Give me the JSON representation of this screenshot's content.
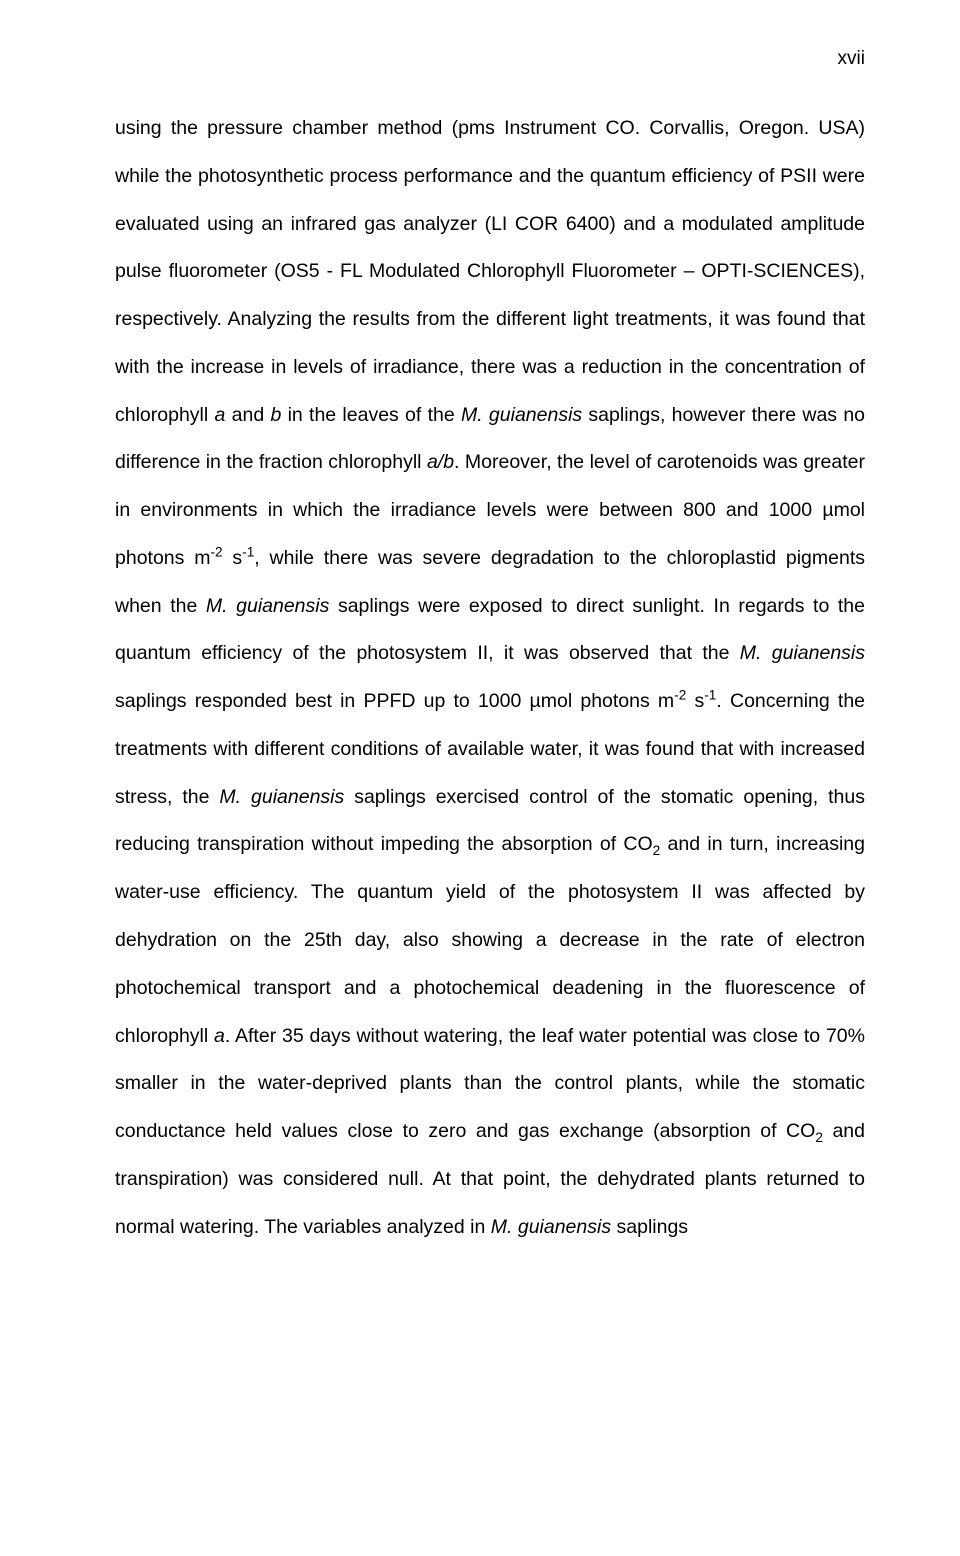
{
  "page": {
    "number": "xvii",
    "background_color": "#ffffff",
    "text_color": "#000000",
    "font_family": "Arial",
    "body_fontsize": 19.5,
    "line_height": 2.45,
    "text_align": "justify"
  },
  "content": {
    "p1_a": "using the pressure chamber method (pms Instrument CO. Corvallis, Oregon. USA) while the photosynthetic process performance and the quantum efficiency of PSII were evaluated using an infrared gas analyzer (LI COR 6400) and a modulated amplitude pulse fluorometer (OS5 - FL Modulated Chlorophyll Fluorometer – OPTI-SCIENCES), respectively. Analyzing the results from the different light treatments, it was found that with the increase in levels of irradiance, there was a reduction in the concentration of chlorophyll ",
    "p1_b": "a",
    "p1_c": " and ",
    "p1_d": "b",
    "p1_e": " in the leaves of the ",
    "p1_f": "M. guianensis",
    "p1_g": " saplings, however there was no difference in the fraction chlorophyll ",
    "p1_h": "a/b",
    "p1_i": ". Moreover, the level of carotenoids was greater in environments in which the irradiance levels were between 800 and 1000 µmol photons m",
    "p1_j": "-2",
    "p1_k": " s",
    "p1_l": "-1",
    "p1_m": ", while there was severe degradation to the chloroplastid pigments when the ",
    "p1_n": "M. guianensis",
    "p1_o": " saplings were exposed to direct sunlight. In regards to the quantum efficiency of the photosystem II, it was observed that the ",
    "p1_p": "M. guianensis",
    "p1_q": " saplings responded best in PPFD up to 1000 µmol photons m",
    "p1_r": "-2",
    "p1_s": " s",
    "p1_t": "-1",
    "p1_u": ". Concerning the treatments with different conditions of available water, it was found that with increased stress, the ",
    "p1_v": "M. guianensis",
    "p1_w": " saplings exercised control of the stomatic opening, thus reducing transpiration without impeding the absorption of CO",
    "p1_x": "2",
    "p1_y": " and in turn, increasing water-use efficiency. The quantum yield of the photosystem II was affected by dehydration on the 25th day, also showing a decrease in the rate of electron photochemical transport and a photochemical deadening in the fluorescence of chlorophyll ",
    "p1_z": "a",
    "p1_aa": ". After 35 days without watering, the leaf water potential was close to 70% smaller in the water-deprived plants than the control plants, while the stomatic conductance held values close to zero and gas exchange (absorption of CO",
    "p1_ab": "2",
    "p1_ac": " and transpiration) was considered null. At that point, the dehydrated plants returned to normal watering. The variables analyzed in ",
    "p1_ad": "M. guianensis",
    "p1_ae": " saplings"
  }
}
